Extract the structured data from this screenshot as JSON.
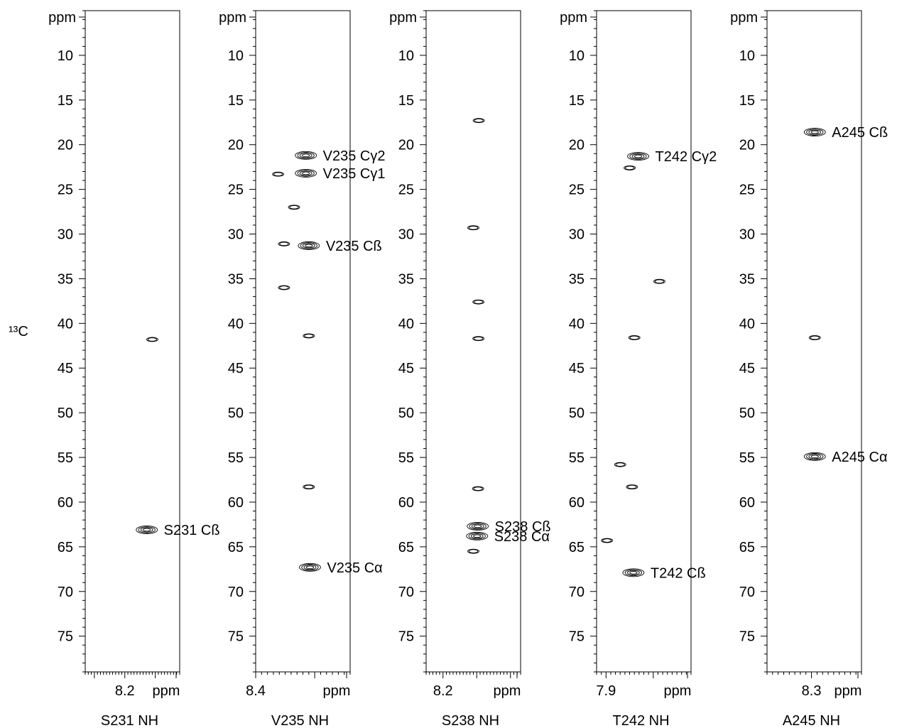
{
  "chart_data": {
    "type": "scatter",
    "axis_label": "¹³C",
    "axis_unit_label": "ppm",
    "y_axis": {
      "range": [
        5,
        79
      ],
      "reversed": true,
      "major_ticks": [
        10,
        15,
        20,
        25,
        30,
        35,
        40,
        45,
        50,
        55,
        60,
        65,
        70,
        75
      ],
      "minor_step": 1
    },
    "strips": [
      {
        "title": "S231 NH",
        "x_range": [
          8.33,
          8.02
        ],
        "x_tick_labels": [
          {
            "value": 8.2,
            "label": "8.2"
          }
        ],
        "x_unit_label": "ppm",
        "peaks": [
          {
            "h": 8.11,
            "c": 41.8,
            "label": ""
          },
          {
            "h": 8.128,
            "c": 63.1,
            "label": "S231 Cß"
          }
        ]
      },
      {
        "title": "V235 NH",
        "x_range": [
          8.4,
          8.24
        ],
        "x_tick_labels": [
          {
            "value": 8.4,
            "label": "8.4"
          }
        ],
        "x_unit_label": "ppm",
        "peaks": [
          {
            "h": 8.315,
            "c": 21.2,
            "label": "V235 Cγ2"
          },
          {
            "h": 8.315,
            "c": 23.2,
            "label": "V235 Cγ1"
          },
          {
            "h": 8.362,
            "c": 23.3,
            "label": ""
          },
          {
            "h": 8.335,
            "c": 27.0,
            "label": ""
          },
          {
            "h": 8.31,
            "c": 31.3,
            "label": "V235 Cß"
          },
          {
            "h": 8.352,
            "c": 31.1,
            "label": ""
          },
          {
            "h": 8.352,
            "c": 36.0,
            "label": ""
          },
          {
            "h": 8.31,
            "c": 41.4,
            "label": ""
          },
          {
            "h": 8.31,
            "c": 58.3,
            "label": ""
          },
          {
            "h": 8.308,
            "c": 67.3,
            "label": "V235 Cα"
          }
        ]
      },
      {
        "title": "S238 NH",
        "x_range": [
          8.25,
          7.97
        ],
        "x_tick_labels": [
          {
            "value": 8.2,
            "label": "8.2"
          }
        ],
        "x_unit_label": "ppm",
        "peaks": [
          {
            "h": 8.094,
            "c": 17.3,
            "label": ""
          },
          {
            "h": 8.11,
            "c": 29.3,
            "label": ""
          },
          {
            "h": 8.095,
            "c": 37.6,
            "label": ""
          },
          {
            "h": 8.095,
            "c": 41.7,
            "label": ""
          },
          {
            "h": 8.096,
            "c": 58.5,
            "label": ""
          },
          {
            "h": 8.097,
            "c": 62.7,
            "label": "S238 Cß"
          },
          {
            "h": 8.099,
            "c": 63.8,
            "label": "S238 Cα"
          },
          {
            "h": 8.11,
            "c": 65.5,
            "label": ""
          }
        ]
      },
      {
        "title": "T242 NH",
        "x_range": [
          7.92,
          7.72
        ],
        "x_tick_labels": [
          {
            "value": 7.9,
            "label": "7.9"
          }
        ],
        "x_unit_label": "ppm",
        "peaks": [
          {
            "h": 7.832,
            "c": 21.3,
            "label": "T242 Cγ2"
          },
          {
            "h": 7.85,
            "c": 22.6,
            "label": ""
          },
          {
            "h": 7.787,
            "c": 35.3,
            "label": ""
          },
          {
            "h": 7.84,
            "c": 41.6,
            "label": ""
          },
          {
            "h": 7.87,
            "c": 55.8,
            "label": ""
          },
          {
            "h": 7.845,
            "c": 58.3,
            "label": ""
          },
          {
            "h": 7.898,
            "c": 64.3,
            "label": ""
          },
          {
            "h": 7.842,
            "c": 67.9,
            "label": "T242 Cß"
          }
        ]
      },
      {
        "title": "A245 NH",
        "x_range": [
          8.38,
          8.21
        ],
        "x_tick_labels": [
          {
            "value": 8.3,
            "label": "8.3"
          }
        ],
        "x_unit_label": "ppm",
        "peaks": [
          {
            "h": 8.294,
            "c": 18.6,
            "label": "A245 Cß"
          },
          {
            "h": 8.294,
            "c": 41.6,
            "label": ""
          },
          {
            "h": 8.294,
            "c": 54.9,
            "label": "A245 Cα"
          }
        ]
      }
    ]
  }
}
